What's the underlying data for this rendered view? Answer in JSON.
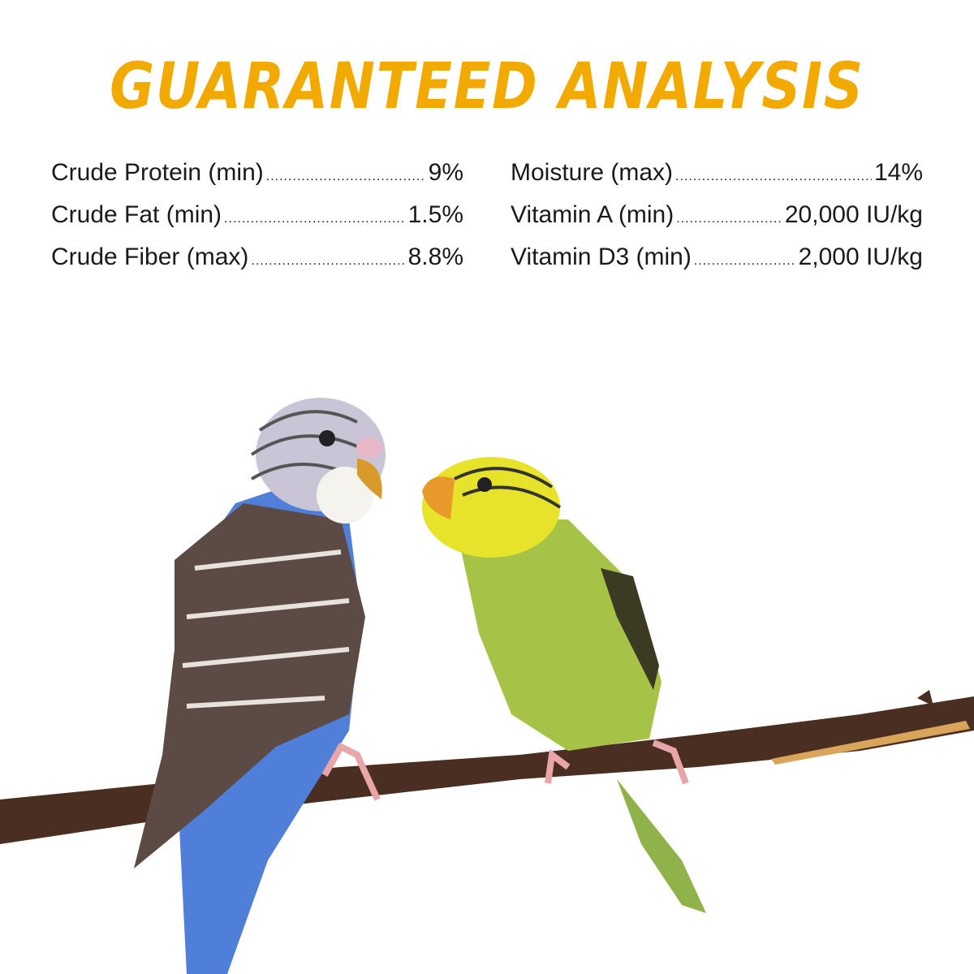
{
  "title": "GUARANTEED ANALYSIS",
  "title_color": "#F2A900",
  "analysis": {
    "left": [
      {
        "label": "Crude Protein (min)",
        "value": "9%"
      },
      {
        "label": "Crude Fat (min)",
        "value": "1.5%"
      },
      {
        "label": "Crude Fiber (max)",
        "value": "8.8%"
      }
    ],
    "right": [
      {
        "label": "Moisture (max)",
        "value": "14%"
      },
      {
        "label": "Vitamin A (min)",
        "value": "20,000 IU/kg"
      },
      {
        "label": "Vitamin D3 (min)",
        "value": "2,000 IU/kg"
      }
    ]
  },
  "image": {
    "subject": "two budgies on a branch",
    "icons": [
      "blue-budgie",
      "green-budgie",
      "branch"
    ]
  }
}
